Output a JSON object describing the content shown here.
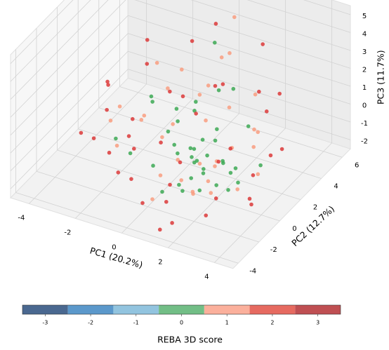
{
  "chart_data": {
    "type": "scatter3d",
    "xlabel": "PC1 (20.2%)",
    "ylabel": "PC2 (12.7%)",
    "zlabel": "PC3 (11.7%)",
    "xlim": [
      -4.8,
      4.8
    ],
    "ylim": [
      -4.5,
      6.8
    ],
    "zlim": [
      -2.5,
      5.5
    ],
    "xticks": [
      -4,
      -2,
      0,
      2,
      4
    ],
    "yticks": [
      -4,
      -2,
      0,
      2,
      4,
      6
    ],
    "zticks": [
      -2,
      -1,
      0,
      1,
      2,
      3,
      4,
      5
    ],
    "grid": true,
    "series": [
      {
        "color": "#3da955",
        "x": [
          0.5,
          1.0,
          1.5,
          0.8,
          1.2,
          2.0,
          -0.5,
          0.3,
          1.8,
          2.2,
          0.0,
          -1.0,
          1.4,
          0.9,
          2.5,
          -1.5,
          0.6,
          1.1,
          1.7,
          -0.2,
          3.0,
          0.4,
          1.3,
          -2.0,
          2.8,
          0.7,
          1.9,
          -0.8,
          1.6,
          0.2,
          2.4,
          -1.2,
          1.0,
          3.3,
          0.1,
          -2.5,
          1.5,
          2.1,
          -0.6,
          0.8
        ],
        "y": [
          1.0,
          0.5,
          0.0,
          1.5,
          -0.5,
          0.8,
          2.0,
          0.2,
          1.2,
          -0.3,
          2.5,
          3.0,
          0.6,
          -1.0,
          0.4,
          1.8,
          3.5,
          2.2,
          -0.8,
          1.0,
          0.0,
          -1.5,
          1.6,
          2.8,
          -0.5,
          0.9,
          2.0,
          0.3,
          -0.2,
          4.0,
          1.1,
          -1.0,
          0.0,
          1.5,
          2.4,
          0.5,
          -2.0,
          3.0,
          1.3,
          0.7
        ],
        "z": [
          -0.8,
          -1.0,
          -1.2,
          -0.5,
          -1.3,
          -0.9,
          -0.3,
          -0.7,
          -1.1,
          -1.4,
          0.2,
          -0.4,
          -0.6,
          -1.5,
          -1.0,
          0.5,
          1.0,
          -0.2,
          -1.6,
          -0.9,
          -1.1,
          -1.8,
          -0.4,
          0.0,
          -1.3,
          -0.7,
          2.5,
          -1.9,
          -0.8,
          3.2,
          -1.2,
          -0.6,
          -0.5,
          -0.9,
          0.8,
          -1.2,
          -1.0,
          -0.1,
          -0.5,
          -1.3
        ]
      },
      {
        "color": "#f99d80",
        "x": [
          -3.0,
          -1.5,
          0.0,
          1.0,
          2.0,
          3.0,
          -2.0,
          0.5,
          1.5,
          2.5,
          -0.5,
          -1.0,
          0.8,
          1.8,
          3.5,
          -2.5,
          0.2,
          1.2,
          2.2,
          -0.8,
          0.6,
          1.6,
          2.8,
          -1.8,
          0.4,
          1.4,
          2.4,
          -0.3,
          3.2,
          -1.2,
          0.9,
          1.9,
          -2.2,
          0.1,
          2.6
        ],
        "y": [
          2.0,
          1.0,
          3.0,
          -1.0,
          0.0,
          1.5,
          -0.5,
          4.0,
          2.5,
          -1.5,
          0.5,
          3.5,
          1.8,
          -0.2,
          0.8,
          0.0,
          -2.0,
          3.2,
          1.2,
          2.2,
          5.0,
          -1.2,
          2.0,
          1.4,
          0.0,
          -0.8,
          3.0,
          4.5,
          -0.5,
          2.6,
          1.0,
          0.4,
          3.8,
          -1.0,
          2.8
        ],
        "z": [
          -0.5,
          0.2,
          0.8,
          -1.2,
          -0.6,
          0.0,
          -0.8,
          2.5,
          1.0,
          -1.0,
          -0.3,
          1.5,
          0.4,
          -1.4,
          -0.9,
          0.1,
          -2.0,
          3.5,
          -0.2,
          -0.7,
          4.2,
          -1.6,
          0.6,
          -0.4,
          -0.9,
          -1.8,
          1.8,
          0.3,
          -1.1,
          0.9,
          -1.5,
          -0.6,
          1.2,
          -1.3,
          -0.1
        ]
      },
      {
        "color": "#dc3a3a",
        "x": [
          -4.0,
          -3.5,
          -3.0,
          -2.5,
          -2.0,
          -1.5,
          -1.0,
          -0.5,
          0.0,
          0.5,
          1.0,
          1.5,
          2.0,
          2.5,
          3.0,
          3.5,
          4.0,
          -3.2,
          -2.2,
          -1.2,
          -0.2,
          0.8,
          1.8,
          2.8,
          3.8,
          -2.8,
          -1.8,
          -0.8,
          0.2,
          1.2,
          2.2,
          3.2,
          -3.8,
          -0.6,
          0.6,
          1.6,
          2.6,
          3.6,
          -1.4,
          0.4
        ],
        "y": [
          0.5,
          2.0,
          -0.5,
          3.5,
          1.0,
          -1.5,
          4.5,
          2.5,
          -2.5,
          0.0,
          3.0,
          -3.0,
          1.5,
          -1.0,
          4.0,
          0.0,
          2.0,
          1.2,
          -0.8,
          2.8,
          5.0,
          -2.0,
          0.8,
          3.2,
          -0.5,
          4.2,
          0.2,
          -1.8,
          2.2,
          -3.5,
          3.8,
          1.0,
          2.6,
          0.6,
          -1.2,
          5.5,
          -2.2,
          1.8,
          -0.2,
          3.6
        ],
        "z": [
          -1.5,
          0.5,
          -0.8,
          1.2,
          -0.2,
          -1.5,
          2.5,
          0.8,
          -2.0,
          -1.0,
          1.8,
          -2.2,
          -0.5,
          -1.6,
          1.5,
          -1.8,
          0.0,
          -0.3,
          -1.1,
          0.6,
          3.5,
          -1.9,
          -0.9,
          0.9,
          -1.7,
          2.0,
          -0.6,
          -1.4,
          0.3,
          -2.4,
          1.4,
          -1.2,
          0.2,
          -0.7,
          -1.5,
          2.8,
          -1.8,
          -0.4,
          -0.9,
          1.1
        ]
      }
    ],
    "colorbar": {
      "label": "REBA 3D score",
      "lim": [
        -3.5,
        3.5
      ],
      "ticks": [
        -3,
        -2,
        -1,
        0,
        1,
        2,
        3
      ],
      "colors": [
        "#4a6890",
        "#5b98cb",
        "#92c4df",
        "#72be86",
        "#fbb09c",
        "#e66a60",
        "#bf4f52"
      ]
    }
  }
}
